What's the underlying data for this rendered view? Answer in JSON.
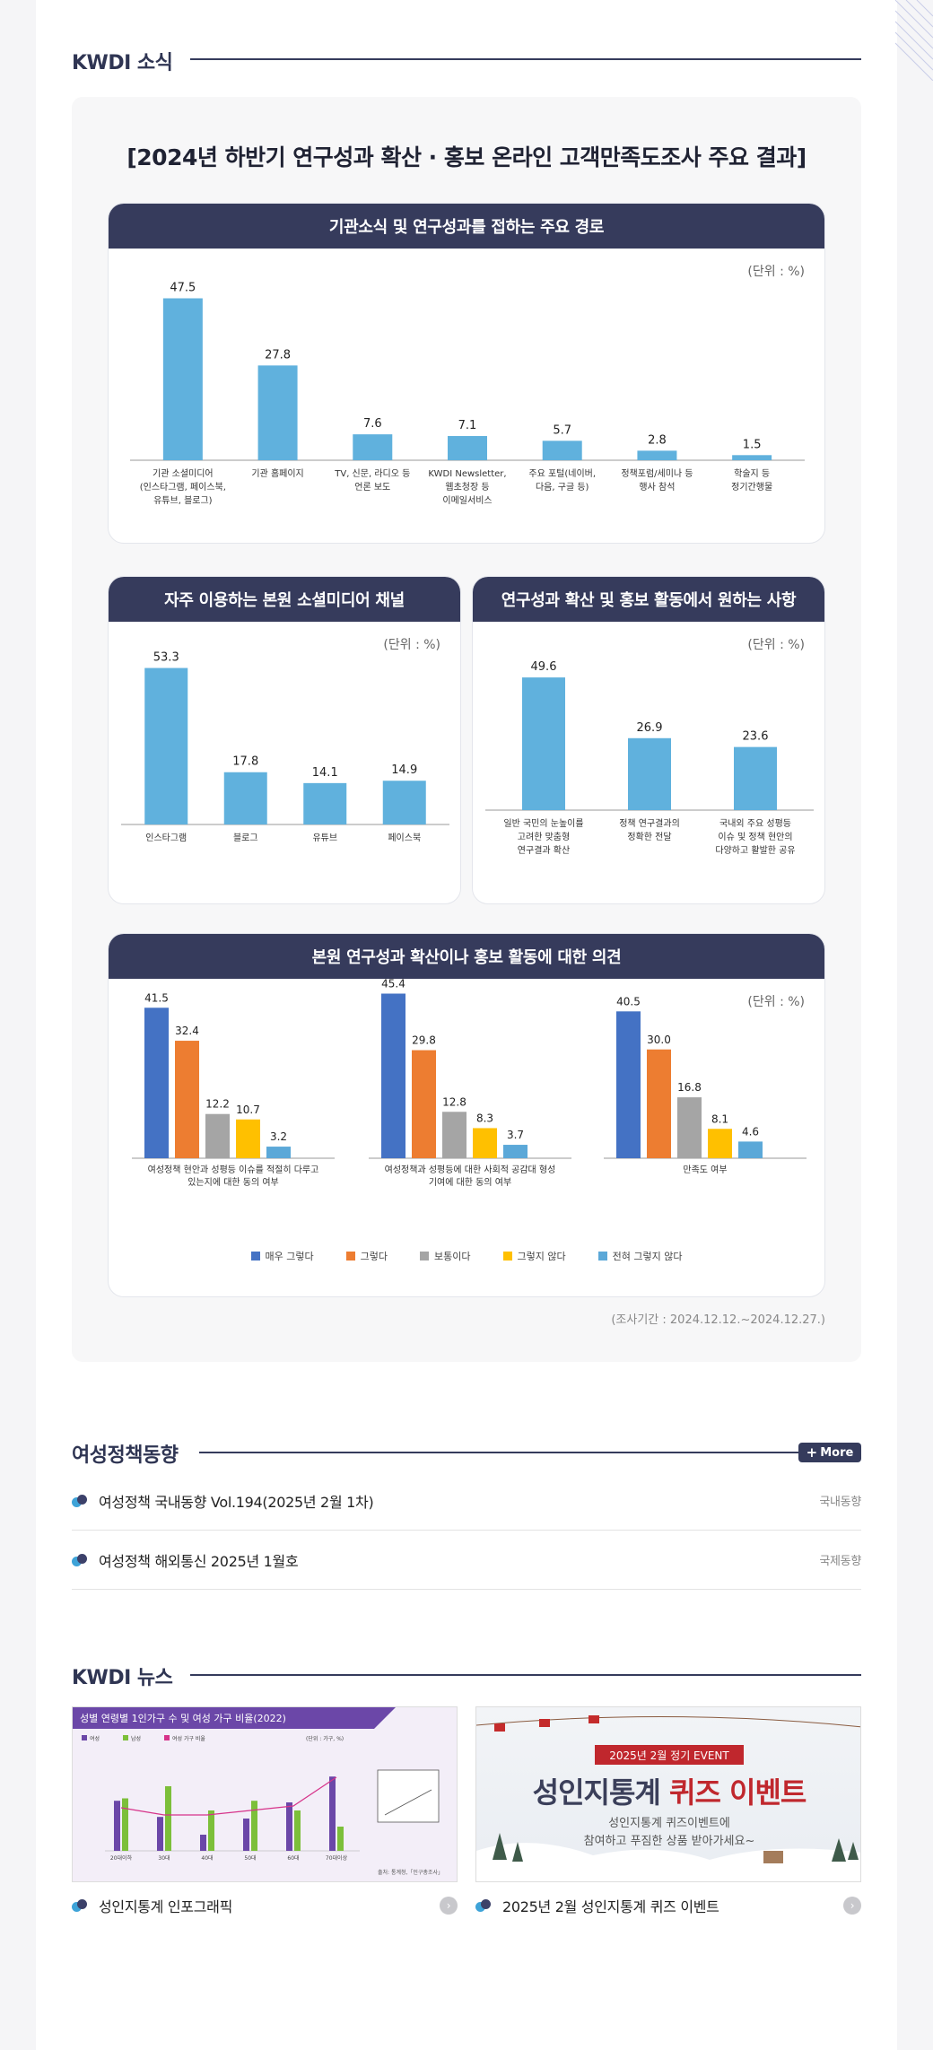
{
  "sections": {
    "news_title": "KWDI 소식",
    "policy_title": "여성정책동향",
    "kwdi_news_title": "KWDI 뉴스",
    "more_label": "More"
  },
  "survey": {
    "title": "[2024년 하반기 연구성과 확산 · 홍보 온라인 고객만족도조사 주요 결과]",
    "unit": "(단위 : %)",
    "period": "(조사기간 : 2024.12.12.~2024.12.27.)",
    "legend": [
      "매우 그렇다",
      "그렇다",
      "보통이다",
      "그렇지 않다",
      "전혀 그렇지 않다"
    ]
  },
  "colors": {
    "bar": "#60b1dd",
    "header": "#363b5c",
    "likert": [
      "#4472c4",
      "#ed7d31",
      "#a5a5a5",
      "#ffc000",
      "#5ba8d8"
    ]
  },
  "chart_data": [
    {
      "type": "bar",
      "title": "기관소식 및 연구성과를 접하는 주요 경로",
      "categories": [
        [
          "기관 소셜미디어",
          "(인스타그램, 페이스북,",
          "유튜브, 블로그)"
        ],
        [
          "기관 홈페이지"
        ],
        [
          "TV, 신문, 라디오 등",
          "언론 보도"
        ],
        [
          "KWDI Newsletter,",
          "웹초청장 등",
          "이메일서비스"
        ],
        [
          "주요 포털(네이버,",
          "다음, 구글 등)"
        ],
        [
          "정책포럼/세미나 등",
          "행사 참석"
        ],
        [
          "학술지 등",
          "정기간행물"
        ]
      ],
      "values": [
        47.5,
        27.8,
        7.6,
        7.1,
        5.7,
        2.8,
        1.5
      ],
      "ylim": [
        0,
        50
      ]
    },
    {
      "type": "bar",
      "title": "자주 이용하는 본원 소셜미디어 채널",
      "categories": [
        [
          "인스타그램"
        ],
        [
          "블로그"
        ],
        [
          "유튜브"
        ],
        [
          "페이스북"
        ]
      ],
      "values": [
        53.3,
        17.8,
        14.1,
        14.9
      ],
      "ylim": [
        0,
        55
      ]
    },
    {
      "type": "bar",
      "title": "연구성과 확산 및 홍보 활동에서 원하는 사항",
      "categories": [
        [
          "일반 국민의 눈높이를",
          "고려한 맞춤형",
          "연구결과 확산"
        ],
        [
          "정책 연구결과의",
          "정확한 전달"
        ],
        [
          "국내외 주요 성평등",
          "이슈 및 정책 현안의",
          "다양하고 활발한 공유"
        ]
      ],
      "values": [
        49.6,
        26.9,
        23.6
      ],
      "ylim": [
        0,
        55
      ]
    },
    {
      "type": "bar",
      "title": "본원 연구성과 확산이나 홍보 활동에 대한 의견",
      "groups": [
        {
          "label": [
            "여성정책 현안과 성평등 이슈를 적절히 다루고",
            "있는지에 대한 동의 여부"
          ],
          "values": [
            41.5,
            32.4,
            12.2,
            10.7,
            3.2
          ]
        },
        {
          "label": [
            "여성정책과 성평등에 대한 사회적 공감대 형성",
            "기여에 대한 동의 여부"
          ],
          "values": [
            45.4,
            29.8,
            12.8,
            8.3,
            3.7
          ]
        },
        {
          "label": [
            "만족도 여부"
          ],
          "values": [
            40.5,
            30.0,
            16.8,
            8.1,
            4.6
          ]
        }
      ],
      "series": [
        "매우 그렇다",
        "그렇다",
        "보통이다",
        "그렇지 않다",
        "전혀 그렇지 않다"
      ],
      "ylim": [
        0,
        48
      ]
    }
  ],
  "policy_items": [
    {
      "title": "여성정책 국내동향 Vol.194(2025년 2월 1차)",
      "category": "국내동향"
    },
    {
      "title": "여성정책 해외통신 2025년 1월호",
      "category": "국제동향"
    }
  ],
  "news": [
    {
      "caption": "성인지통계 인포그래픽",
      "thumb_title": "성별 연령별 1인가구 수 및 여성 가구 비율(2022)",
      "thumb_legend": [
        "여성",
        "남성",
        "여성 가구 비율"
      ],
      "thumb_unit": "(단위 : 가구, %)",
      "thumb_source": "출처: 통계청,「인구총조사」",
      "thumb_ages": [
        "20대이하",
        "30대",
        "40대",
        "50대",
        "60대",
        "70대이상"
      ]
    },
    {
      "caption": "2025년 2월 성인지통계 퀴즈 이벤트",
      "badge": "2025년 2월 정기 EVENT",
      "headline_a": "성인지통계",
      "headline_b": "퀴즈 이벤트",
      "sub1": "성인지통계 퀴즈이벤트에",
      "sub2": "참여하고 푸짐한 상품 받아가세요~"
    }
  ]
}
